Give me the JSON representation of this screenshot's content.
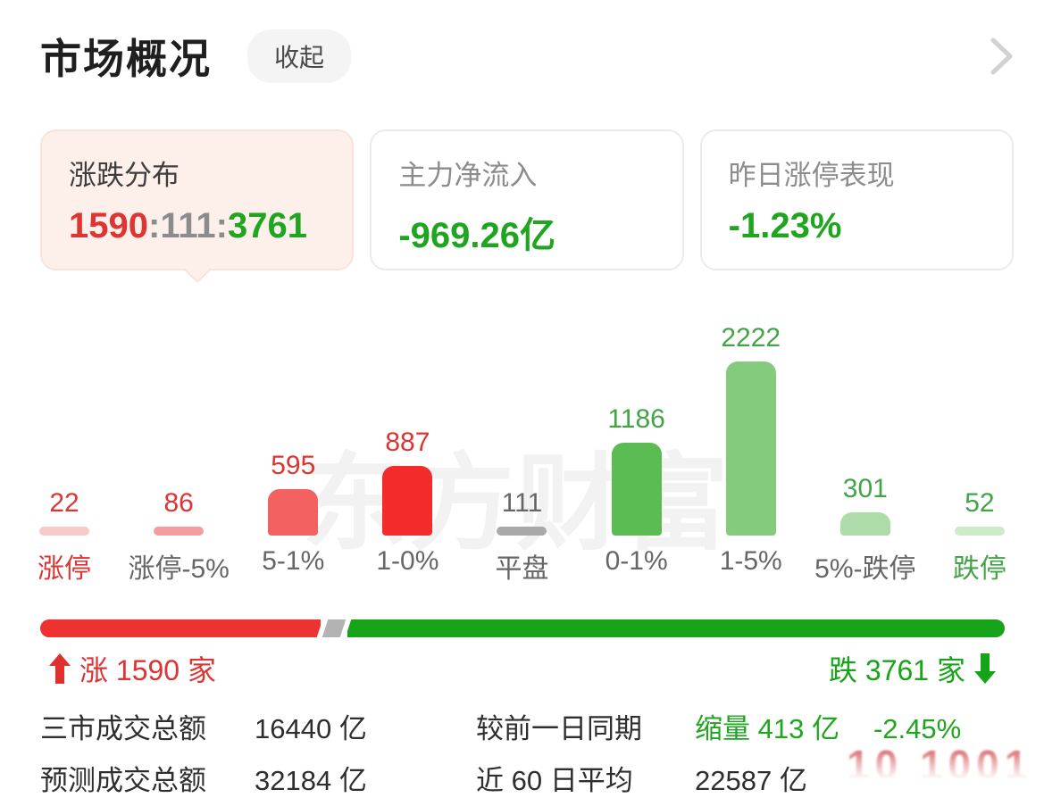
{
  "header": {
    "title": "市场概况",
    "collapse_label": "收起"
  },
  "cards": [
    {
      "label": "涨跌分布",
      "value_parts": [
        {
          "text": "1590",
          "color": "#dd3434"
        },
        {
          "text": ":",
          "color": "#8c8c8c"
        },
        {
          "text": "111",
          "color": "#8c8c8c"
        },
        {
          "text": ":",
          "color": "#8c8c8c"
        },
        {
          "text": "3761",
          "color": "#1fa51f"
        }
      ],
      "selected": true
    },
    {
      "label": "主力净流入",
      "value": "-969.26亿",
      "value_color": "#1fa51f"
    },
    {
      "label": "昨日涨停表现",
      "value": "-1.23%",
      "value_color": "#1fa51f"
    }
  ],
  "chart_data": {
    "type": "bar",
    "title": "涨跌分布",
    "categories": [
      "涨停",
      "涨停-5%",
      "5-1%",
      "1-0%",
      "平盘",
      "0-1%",
      "1-5%",
      "5%-跌停",
      "跌停"
    ],
    "values": [
      22,
      86,
      595,
      887,
      111,
      1186,
      2222,
      301,
      52
    ],
    "bar_colors": [
      "#f8caca",
      "#f29e9e",
      "#f26060",
      "#f32b2b",
      "#a9a9a9",
      "#5abc52",
      "#85cb7e",
      "#aedca8",
      "#cdebc8"
    ],
    "value_label_colors": [
      "#dd3434",
      "#dd3434",
      "#dd3434",
      "#dd3434",
      "#666666",
      "#42a447",
      "#42a447",
      "#42a447",
      "#42a447"
    ],
    "category_label_colors": [
      "#dd3434",
      "#666666",
      "#666666",
      "#666666",
      "#666666",
      "#666666",
      "#666666",
      "#666666",
      "#42a447"
    ],
    "ylim": [
      0,
      2222
    ],
    "grid": false,
    "data_labels": true,
    "legend": false
  },
  "ratio_bar": {
    "up_count": 1590,
    "flat_count": 111,
    "down_count": 3761,
    "up_label": "涨 1590 家",
    "down_label": "跌 3761 家",
    "up_color": "#ee3131",
    "flat_color": "#b3b3b3",
    "down_color": "#17a317"
  },
  "stats": {
    "rows": [
      {
        "label1": "三市成交总额",
        "value1": "16440 亿",
        "label2": "较前一日同期",
        "value2": "缩量 413 亿",
        "value2_pct": "-2.45%"
      },
      {
        "label1": "预测成交总额",
        "value1": "32184 亿",
        "label2": "近 60 日平均",
        "value2": "22587 亿",
        "value2_pct": ""
      }
    ]
  },
  "watermark": "东方财富",
  "stamp_text": "10 1001",
  "colors": {
    "accent_red": "#dd3434",
    "accent_green": "#1fa51f",
    "card_active_bg": "#fdf0ea",
    "pill_bg": "#f4f4f4",
    "progress_red": "#ee3131",
    "progress_green": "#17a317",
    "divider_gray": "#b3b3b3"
  }
}
